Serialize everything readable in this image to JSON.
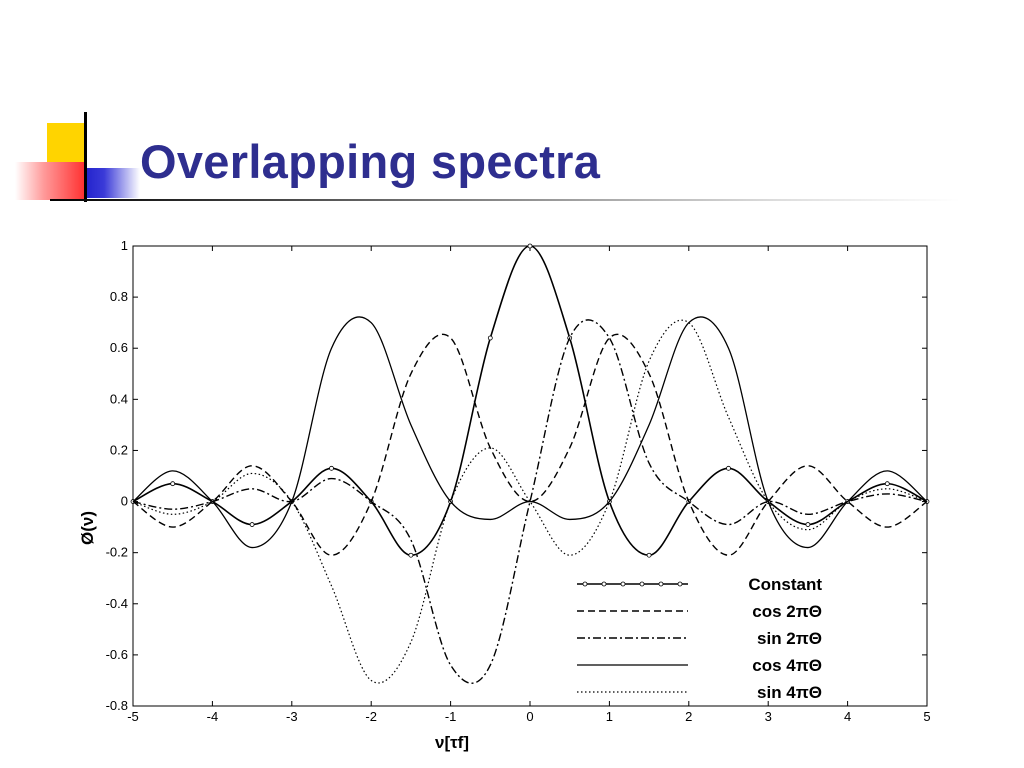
{
  "slide": {
    "title": "Overlapping spectra",
    "accent_colors": {
      "title": "#2e2e8f",
      "yellow": "#ffd400",
      "blue": "#1c1cc9",
      "red": "#ff2b2b"
    }
  },
  "chart_data": {
    "type": "line",
    "xlabel": "ν[τf]",
    "ylabel": "Ø(ν)",
    "xlim": [
      -5,
      5
    ],
    "ylim": [
      -0.8,
      1
    ],
    "xticks": [
      "-5",
      "-4",
      "-3",
      "-2",
      "-1",
      "0",
      "1",
      "2",
      "3",
      "4",
      "5"
    ],
    "yticks": [
      "1",
      "0.8",
      "0.6",
      "0.4",
      "0.2",
      "0",
      "-0.2",
      "-0.4",
      "-0.6",
      "-0.8"
    ],
    "grid": false,
    "legend_position": "bottom-right",
    "x": [
      -5,
      -4.5,
      -4,
      -3.5,
      -3,
      -2.5,
      -2,
      -1.5,
      -1,
      -0.5,
      0,
      0.5,
      1,
      1.5,
      2,
      2.5,
      3,
      3.5,
      4,
      4.5,
      5
    ],
    "series": [
      {
        "name": "Constant",
        "style": "solid-markers",
        "values": [
          0,
          0.07,
          0,
          -0.09,
          0,
          0.13,
          0,
          -0.21,
          0,
          0.64,
          1,
          0.64,
          0,
          -0.21,
          0,
          0.13,
          0,
          -0.09,
          0,
          0.07,
          0
        ]
      },
      {
        "name": "cos 2πΘ",
        "style": "dashed",
        "values": [
          0,
          -0.1,
          0,
          0.14,
          0,
          -0.21,
          0,
          0.5,
          0.64,
          0.21,
          0,
          0.21,
          0.64,
          0.5,
          0,
          -0.21,
          0,
          0.14,
          0,
          -0.1,
          0
        ]
      },
      {
        "name": "sin 2πΘ",
        "style": "dashdot",
        "values": [
          0,
          -0.03,
          0,
          0.05,
          0,
          0.09,
          0,
          -0.15,
          -0.64,
          -0.64,
          0,
          0.64,
          0.64,
          0.15,
          0,
          -0.09,
          0,
          -0.05,
          0,
          0.03,
          0
        ]
      },
      {
        "name": "cos 4πΘ",
        "style": "solid",
        "values": [
          0,
          0.12,
          0,
          -0.18,
          0,
          0.6,
          0.7,
          0.3,
          0,
          -0.07,
          0,
          -0.07,
          0,
          0.3,
          0.7,
          0.6,
          0,
          -0.18,
          0,
          0.12,
          0
        ]
      },
      {
        "name": "sin 4πΘ",
        "style": "dotted",
        "values": [
          0,
          -0.05,
          0,
          0.11,
          0,
          -0.33,
          -0.7,
          -0.55,
          0,
          0.21,
          0,
          -0.21,
          0,
          0.55,
          0.7,
          0.33,
          0,
          -0.11,
          0,
          0.05,
          0
        ]
      }
    ]
  }
}
